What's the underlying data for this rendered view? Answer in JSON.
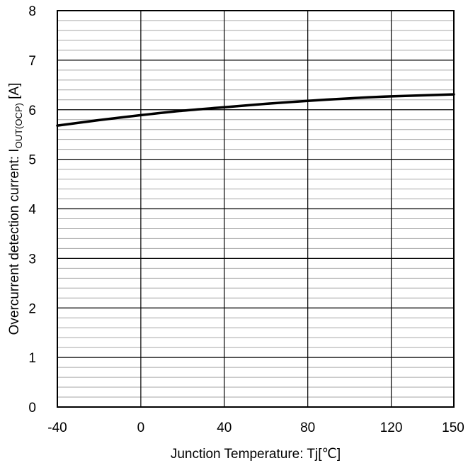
{
  "chart_data": {
    "type": "line",
    "xlabel": "Junction Temperature: Tj[℃]",
    "ylabel": {
      "main": "Overcurrent detection current: I",
      "subscript": "OUT(OCP)",
      "unit": " [A]"
    },
    "xlim": [
      -40,
      150
    ],
    "ylim": [
      0,
      8
    ],
    "x_ticks": [
      -40,
      0,
      40,
      80,
      120,
      150
    ],
    "x_tick_labels": [
      "-40",
      "0",
      "40",
      "80",
      "120",
      "150"
    ],
    "y_ticks": [
      0,
      1,
      2,
      3,
      4,
      5,
      6,
      7,
      8
    ],
    "y_tick_labels": [
      "0",
      "1",
      "2",
      "3",
      "4",
      "5",
      "6",
      "7",
      "8"
    ],
    "y_minor_step": 0.2,
    "grid": true,
    "series": [
      {
        "x": [
          -40,
          -20,
          0,
          20,
          40,
          60,
          80,
          100,
          120,
          150
        ],
        "y": [
          5.68,
          5.79,
          5.89,
          5.98,
          6.05,
          6.12,
          6.18,
          6.23,
          6.27,
          6.31
        ],
        "color": "#000000"
      }
    ]
  }
}
